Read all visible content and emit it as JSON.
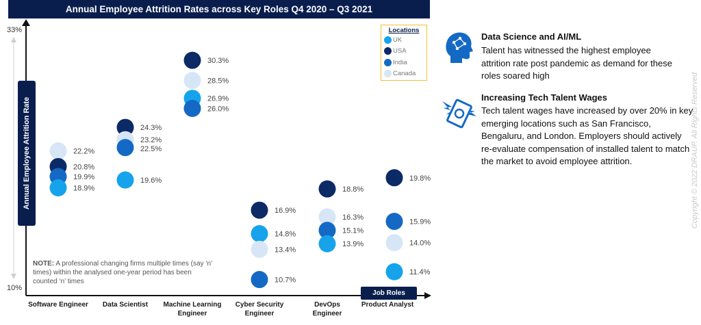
{
  "chart_data": {
    "type": "scatter",
    "title": "Annual Employee Attrition Rates across Key Roles Q4 2020 – Q3 2021",
    "ylabel": "Annual  Employee Attrition Rate",
    "xlabel": "Job Roles",
    "ylim": [
      10,
      33
    ],
    "y_ticks": [
      "33%",
      "10%"
    ],
    "categories": [
      "Software Engineer",
      "Data Scientist",
      "Machine Learning Engineer",
      "Cyber Security Engineer",
      "DevOps Engineer",
      "Product Analyst"
    ],
    "legend_title": "Locations",
    "legend_position": "top-right",
    "series": [
      {
        "name": "UK",
        "color": "#16a3ec",
        "values": [
          18.9,
          19.6,
          26.9,
          14.8,
          13.9,
          11.4
        ]
      },
      {
        "name": "USA",
        "color": "#0b2a66",
        "values": [
          20.8,
          24.3,
          30.3,
          16.9,
          18.8,
          19.8
        ]
      },
      {
        "name": "India",
        "color": "#1469c4",
        "values": [
          19.9,
          22.5,
          26.0,
          10.7,
          15.1,
          15.9
        ]
      },
      {
        "name": "Canada",
        "color": "#d6e6f7",
        "values": [
          22.2,
          23.2,
          28.5,
          13.4,
          16.3,
          14.0
        ]
      }
    ],
    "labels": [
      [
        "22.2%",
        "20.8%",
        "19.9%",
        "18.9%"
      ],
      [
        "24.3%",
        "23.2%",
        "22.5%",
        "19.6%"
      ],
      [
        "30.3%",
        "28.5%",
        "26.9%",
        "26.0%"
      ],
      [
        "16.9%",
        "14.8%",
        "13.4%",
        "10.7%"
      ],
      [
        "18.8%",
        "16.3%",
        "15.1%",
        "13.9%"
      ],
      [
        "19.8%",
        "15.9%",
        "14.0%",
        "11.4%"
      ]
    ]
  },
  "note": {
    "label": "NOTE:",
    "text": " A professional changing firms multiple times (say ‘n’ times) within the analysed one-year period has been counted ‘n’ times"
  },
  "insights": [
    {
      "heading": "Data Science and AI/ML",
      "body": "Talent has witnessed the highest employee attrition rate post pandemic as demand for these roles soared high",
      "icon": "ai-head-icon"
    },
    {
      "heading": "Increasing Tech Talent Wages",
      "body": "Tech talent wages have increased by over 20% in key emerging locations such as San Francisco, Bengaluru, and London. Employers should actively re-evaluate compensation of installed talent to match the market to avoid employee attrition.",
      "icon": "money-wings-icon"
    }
  ],
  "copyright": "Copyright © 2022 DRAUP. All Rights Reserved"
}
